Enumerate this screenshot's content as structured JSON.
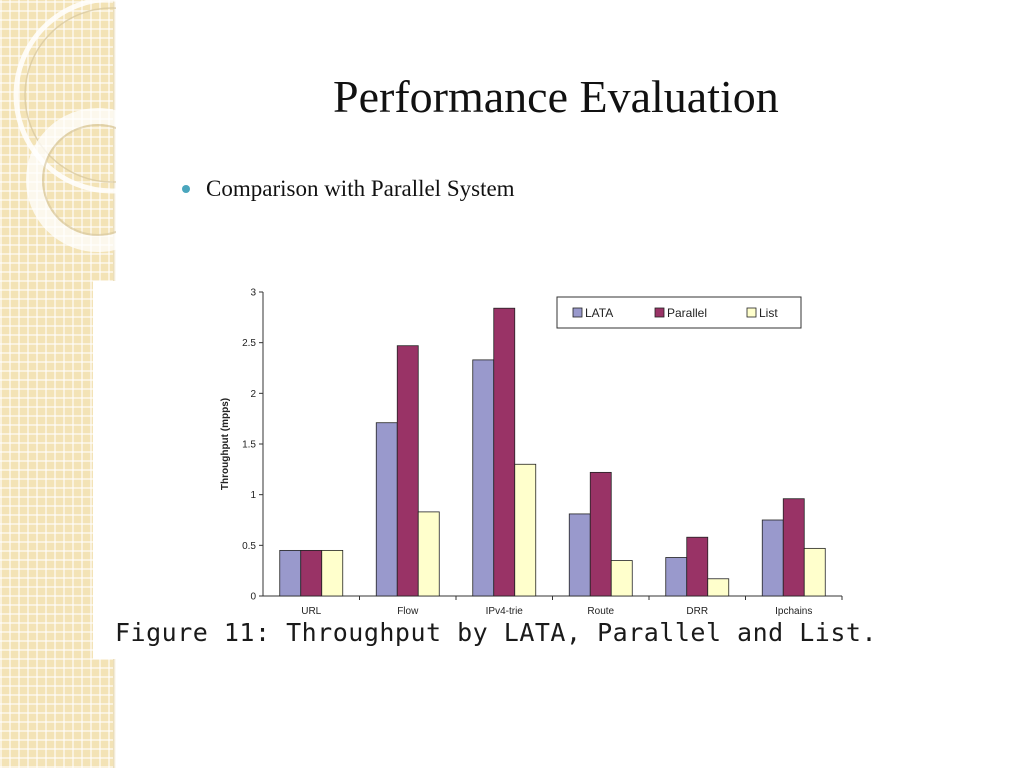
{
  "slide": {
    "title": "Performance Evaluation",
    "bullet": "Comparison with Parallel System"
  },
  "caption": "Figure 11: Throughput by LATA, Parallel and List.",
  "colors": {
    "accent_bullet": "#4aa6bd",
    "side_strip": "#f3e3b6"
  },
  "chart_data": {
    "type": "bar",
    "categories": [
      "URL",
      "Flow",
      "IPv4-trie",
      "Route",
      "DRR",
      "Ipchains"
    ],
    "series": [
      {
        "name": "LATA",
        "color": "#9999cc",
        "values": [
          0.45,
          1.71,
          2.33,
          0.81,
          0.38,
          0.75
        ]
      },
      {
        "name": "Parallel",
        "color": "#993366",
        "values": [
          0.45,
          2.47,
          2.84,
          1.22,
          0.58,
          0.96
        ]
      },
      {
        "name": "List",
        "color": "#ffffcc",
        "values": [
          0.45,
          0.83,
          1.3,
          0.35,
          0.17,
          0.47
        ]
      }
    ],
    "ylabel": "Throughput (mpps)",
    "xlabel": "",
    "ylim": [
      0,
      3
    ],
    "yticks": [
      "0",
      "0.5",
      "1",
      "1.5",
      "2",
      "2.5",
      "3"
    ],
    "grid": false,
    "legend": "top-right"
  }
}
